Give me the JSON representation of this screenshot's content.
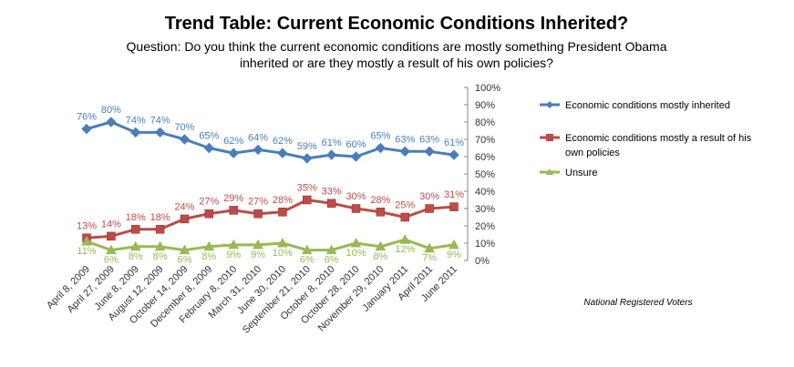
{
  "chart_data": {
    "type": "line",
    "title": "Trend Table: Current Economic Conditions Inherited?",
    "subtitle_lines": [
      "Question: Do you think the current economic conditions are mostly something President Obama",
      "inherited or are they mostly a result of his own policies?"
    ],
    "categories": [
      "April 8, 2009",
      "April 27, 2009",
      "June 8, 2009",
      "August 12, 2009",
      "October 14, 2009",
      "December 8, 2009",
      "February 8, 2010",
      "March 31, 2010",
      "June 30, 2010",
      "September 21, 2010",
      "October 8, 2010",
      "October 28, 2010",
      "November 29, 2010",
      "January 2011",
      "April 2011",
      "June 2011"
    ],
    "ylim": [
      0,
      100
    ],
    "yticks": [
      "0%",
      "10%",
      "20%",
      "30%",
      "40%",
      "50%",
      "60%",
      "70%",
      "80%",
      "90%",
      "100%"
    ],
    "y_axis_side": "right",
    "series": [
      {
        "name": "Economic conditions mostly inherited",
        "legend_lines": [
          "Economic conditions mostly  inherited"
        ],
        "color": "#4a7ebb",
        "marker": "diamond",
        "values": [
          76,
          80,
          74,
          74,
          70,
          65,
          62,
          64,
          62,
          59,
          61,
          60,
          65,
          63,
          63,
          61
        ]
      },
      {
        "name": "Economic conditions mostly a result of his own policies",
        "legend_lines": [
          "Economic conditions mostly  a result of his",
          "own policies"
        ],
        "color": "#be4b48",
        "marker": "square",
        "values": [
          13,
          14,
          18,
          18,
          24,
          27,
          29,
          27,
          28,
          35,
          33,
          30,
          28,
          25,
          30,
          31
        ]
      },
      {
        "name": "Unsure",
        "legend_lines": [
          "Unsure"
        ],
        "color": "#98b954",
        "marker": "triangle",
        "values": [
          11,
          6,
          8,
          8,
          6,
          8,
          9,
          9,
          10,
          6,
          6,
          10,
          8,
          12,
          7,
          9
        ]
      }
    ],
    "legend_position": "right",
    "note": "National Registered  Voters"
  }
}
